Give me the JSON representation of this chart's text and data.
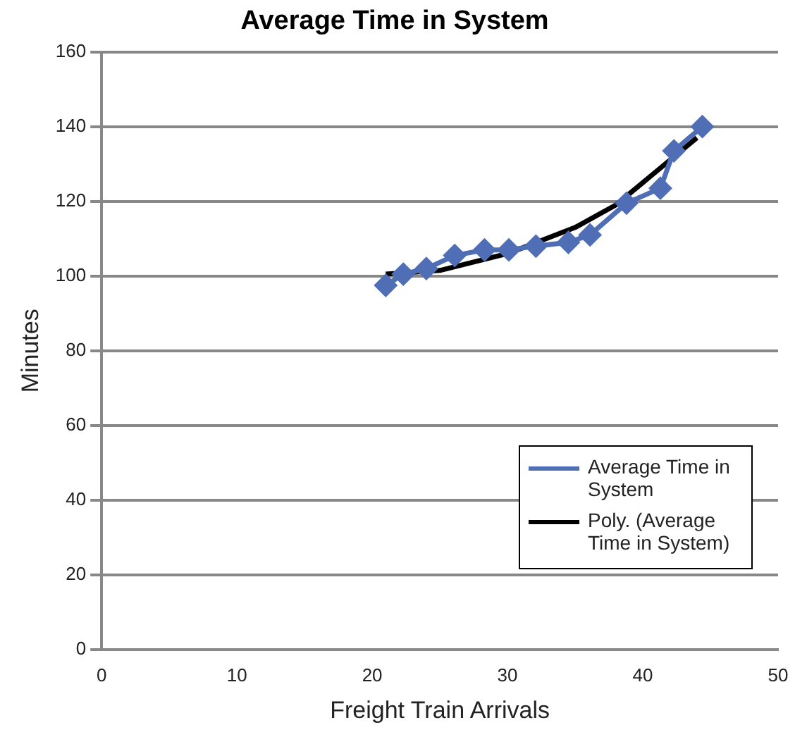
{
  "chart_data": {
    "type": "line",
    "title": "Average Time in System",
    "xlabel": "Freight Train Arrivals",
    "ylabel": "Minutes",
    "xlim": [
      0,
      50
    ],
    "xticks": [
      0,
      10,
      20,
      30,
      40,
      50
    ],
    "ylim": [
      0,
      160
    ],
    "yticks": [
      0,
      20,
      40,
      60,
      80,
      100,
      120,
      140,
      160
    ],
    "grid": "y",
    "legend": "bottom right",
    "series": [
      {
        "name": "Average Time in System",
        "color": "#4f6eb5",
        "marker": "diamond",
        "x": [
          21,
          22.3,
          24,
          26.1,
          28.3,
          30.1,
          32.1,
          34.5,
          36.1,
          38.8,
          41.3,
          42.3,
          44.4
        ],
        "values": [
          97.5,
          100.5,
          102,
          105.5,
          107,
          107,
          108,
          109,
          111,
          119.5,
          123.5,
          133.5,
          140
        ]
      },
      {
        "name": "Poly. (Average Time in System)",
        "color": "#000000",
        "marker": "none",
        "x": [
          21,
          25,
          30,
          35,
          38,
          40,
          42,
          44
        ],
        "values": [
          100.5,
          101.5,
          106,
          113,
          119,
          125,
          131,
          137
        ]
      }
    ]
  }
}
